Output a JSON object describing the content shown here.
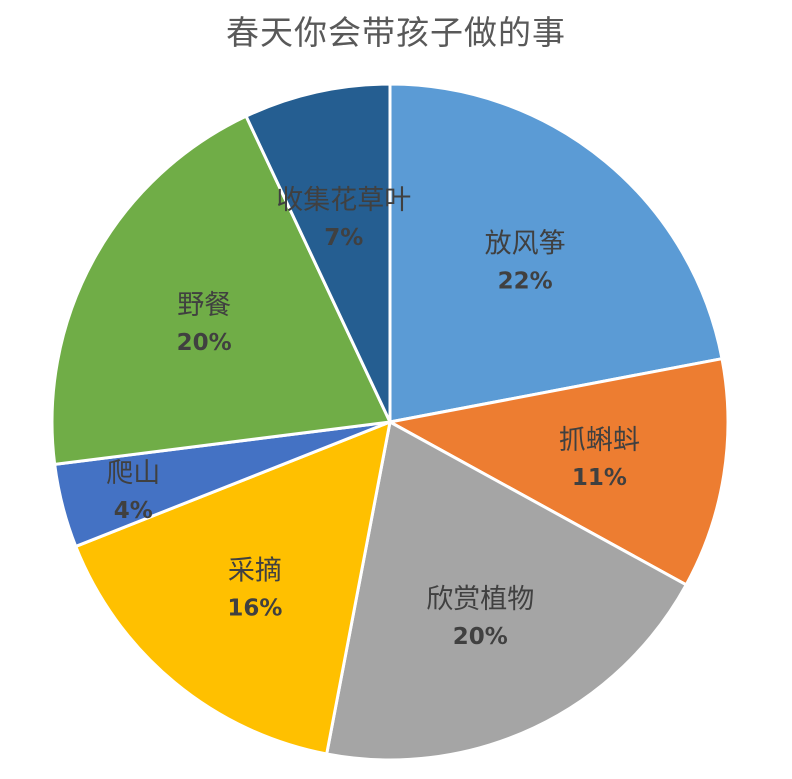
{
  "chart_data": {
    "type": "pie",
    "title": "春天你会带孩子做的事",
    "slices": [
      {
        "label": "放风筝",
        "percent_label": "22%",
        "value": 22,
        "color": "#5B9BD5"
      },
      {
        "label": "抓蝌蚪",
        "percent_label": "11%",
        "value": 11,
        "color": "#ED7D31"
      },
      {
        "label": "欣赏植物",
        "percent_label": "20%",
        "value": 20,
        "color": "#A5A5A5"
      },
      {
        "label": "采摘",
        "percent_label": "16%",
        "value": 16,
        "color": "#FFC000"
      },
      {
        "label": "爬山",
        "percent_label": "4%",
        "value": 4,
        "color": "#4472C4"
      },
      {
        "label": "野餐",
        "percent_label": "20%",
        "value": 20,
        "color": "#70AD47"
      },
      {
        "label": "收集花草叶",
        "percent_label": "7%",
        "value": 7,
        "color": "#255E91"
      }
    ],
    "start": "12 o'clock",
    "direction": "clockwise",
    "legend": "none",
    "data_labels": "inside slices, category name and percentage"
  }
}
